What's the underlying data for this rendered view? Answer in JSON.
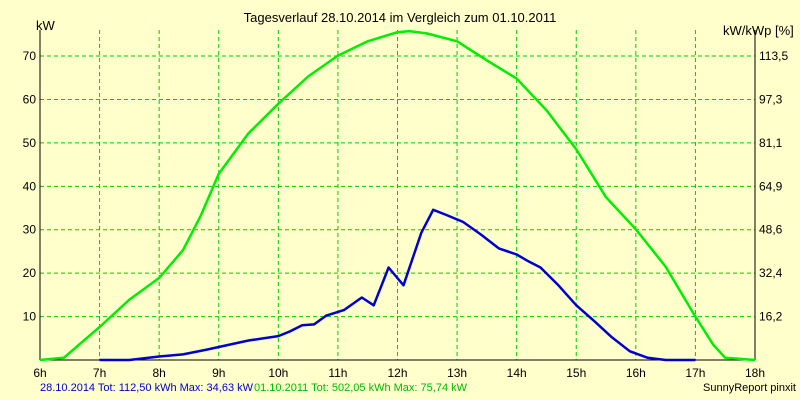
{
  "chart_data": {
    "type": "line",
    "title": "Tagesverlauf 28.10.2014 im Vergleich zum 01.10.2011",
    "ylabel_left": "kW",
    "ylabel_right": "kW/kWp [%]",
    "xlabel": "",
    "x_tick_labels": [
      "6h",
      "7h",
      "8h",
      "9h",
      "10h",
      "11h",
      "12h",
      "13h",
      "14h",
      "15h",
      "16h",
      "17h",
      "18h"
    ],
    "y_left_ticks": [
      10,
      20,
      30,
      40,
      50,
      60,
      70
    ],
    "y_right_ticks": [
      "16,2",
      "32,4",
      "48,6",
      "64,9",
      "81,1",
      "97,3",
      "113,5"
    ],
    "xlim": [
      6,
      18
    ],
    "ylim": [
      0,
      76
    ],
    "grid": true,
    "series": [
      {
        "name": "28.10.2014",
        "color": "#0000cc",
        "points": [
          [
            7,
            0
          ],
          [
            7.5,
            0
          ],
          [
            8,
            0.8
          ],
          [
            8.4,
            1.3
          ],
          [
            8.8,
            2.4
          ],
          [
            9.2,
            3.6
          ],
          [
            9.5,
            4.5
          ],
          [
            9.8,
            5.1
          ],
          [
            10,
            5.5
          ],
          [
            10.2,
            6.6
          ],
          [
            10.4,
            8.0
          ],
          [
            10.6,
            8.2
          ],
          [
            10.8,
            10.2
          ],
          [
            11.1,
            11.5
          ],
          [
            11.4,
            14.4
          ],
          [
            11.6,
            12.6
          ],
          [
            11.85,
            21.3
          ],
          [
            12.1,
            17.2
          ],
          [
            12.4,
            29.3
          ],
          [
            12.6,
            34.6
          ],
          [
            12.8,
            33.5
          ],
          [
            13.1,
            31.8
          ],
          [
            13.4,
            28.9
          ],
          [
            13.7,
            25.7
          ],
          [
            14,
            24.3
          ],
          [
            14.2,
            22.7
          ],
          [
            14.4,
            21.3
          ],
          [
            14.7,
            17.2
          ],
          [
            15,
            12.6
          ],
          [
            15.3,
            9.0
          ],
          [
            15.6,
            5.2
          ],
          [
            15.9,
            2.0
          ],
          [
            16.2,
            0.5
          ],
          [
            16.5,
            0
          ],
          [
            17,
            0
          ]
        ]
      },
      {
        "name": "01.10.2011",
        "color": "#00ee00",
        "points": [
          [
            6,
            0
          ],
          [
            6.4,
            0.5
          ],
          [
            7,
            7.6
          ],
          [
            7.5,
            13.9
          ],
          [
            8,
            18.9
          ],
          [
            8.4,
            25.3
          ],
          [
            8.7,
            33.3
          ],
          [
            9,
            42.9
          ],
          [
            9.5,
            52.2
          ],
          [
            10,
            59.0
          ],
          [
            10.5,
            65.3
          ],
          [
            11,
            70.1
          ],
          [
            11.5,
            73.4
          ],
          [
            12,
            75.5
          ],
          [
            12.2,
            75.74
          ],
          [
            12.5,
            75.2
          ],
          [
            13,
            73.4
          ],
          [
            13.5,
            69.0
          ],
          [
            14,
            64.8
          ],
          [
            14.5,
            57.5
          ],
          [
            15,
            48.5
          ],
          [
            15.5,
            37.5
          ],
          [
            16,
            30.1
          ],
          [
            16.5,
            21.5
          ],
          [
            17,
            10.0
          ],
          [
            17.3,
            3.5
          ],
          [
            17.5,
            0.5
          ],
          [
            18,
            0
          ]
        ]
      }
    ]
  },
  "footer": {
    "series1_text": "28.10.2014 Tot: 112,50 kWh Max: 34,63 kW",
    "series2_text": "01.10.2011 Tot: 502,05 kWh Max: 75,74 kW",
    "credit": "SunnyReport pinxit"
  },
  "colors": {
    "background": "#ffffcc",
    "grid": "#00cc00",
    "series1": "#0000cc",
    "series2": "#00ee00"
  }
}
